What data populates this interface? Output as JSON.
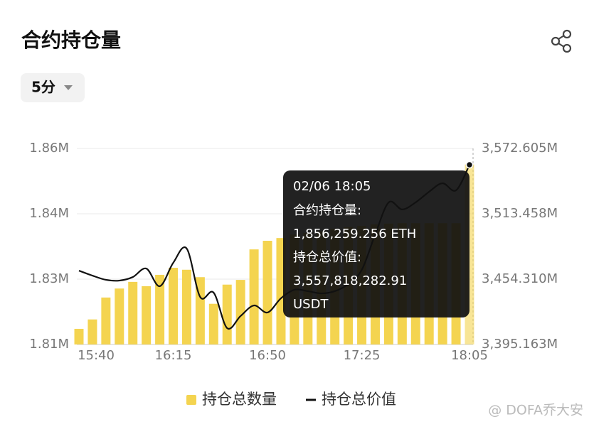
{
  "header": {
    "title": "合约持仓量",
    "interval": "5分"
  },
  "chart_data": {
    "type": "combo",
    "categories": [
      "15:40",
      null,
      null,
      null,
      null,
      null,
      null,
      "16:15",
      null,
      null,
      null,
      null,
      null,
      null,
      "16:50",
      null,
      null,
      null,
      null,
      null,
      null,
      "17:25",
      null,
      null,
      null,
      null,
      null,
      null,
      null,
      "18:05"
    ],
    "series": [
      {
        "name": "持仓总数量",
        "type": "bar",
        "color": "#f4d450",
        "values": [
          1.8143,
          1.8167,
          1.8223,
          1.8246,
          1.8263,
          1.8252,
          1.8281,
          1.8299,
          1.8294,
          1.8275,
          1.8207,
          1.8256,
          1.8268,
          1.8346,
          1.8368,
          1.8375,
          1.8384,
          1.8388,
          1.8392,
          1.8399,
          1.8403,
          1.8406,
          1.841,
          1.8412,
          1.8413,
          1.8413,
          1.8413,
          1.8413,
          1.8413,
          1.8563
        ]
      },
      {
        "name": "持仓总价值",
        "type": "line",
        "axis": "y2",
        "color": "#111111",
        "values": [
          3462.0,
          3457.5,
          3453.7,
          3453.0,
          3456.2,
          3463.9,
          3447.9,
          3469.1,
          3482.0,
          3438.2,
          3442.1,
          3410.0,
          3420.9,
          3430.5,
          3424.1,
          3437.0,
          3444.7,
          3443.4,
          3441.4,
          3443.4,
          3449.8,
          3462.7,
          3494.8,
          3523.8,
          3517.4,
          3523.8,
          3533.4,
          3541.1,
          3534.7,
          3557.818
        ]
      }
    ],
    "ylim": [
      1.8103,
      1.8604
    ],
    "yticks": [
      {
        "value": 1.8103,
        "label": "1.81M"
      },
      {
        "value": 1.827,
        "label": "1.83M"
      },
      {
        "value": 1.8437,
        "label": "1.84M"
      },
      {
        "value": 1.8604,
        "label": "1.86M"
      }
    ],
    "y2lim": [
      3395.163,
      3572.605
    ],
    "y2ticks": [
      {
        "value": 3395.163,
        "label": "3,395.163M"
      },
      {
        "value": 3454.31,
        "label": "3,454.310M"
      },
      {
        "value": 3513.458,
        "label": "3,513.458M"
      },
      {
        "value": 3572.605,
        "label": "3,572.605M"
      }
    ],
    "grid": true,
    "legend": "bottom",
    "tooltip": {
      "title": "02/06 18:05",
      "lines": [
        "合约持仓量:",
        "1,856,259.256 ETH",
        "持仓总价值:",
        "3,557,818,282.91",
        "USDT"
      ]
    }
  },
  "watermark": "@ DOFA乔大安"
}
